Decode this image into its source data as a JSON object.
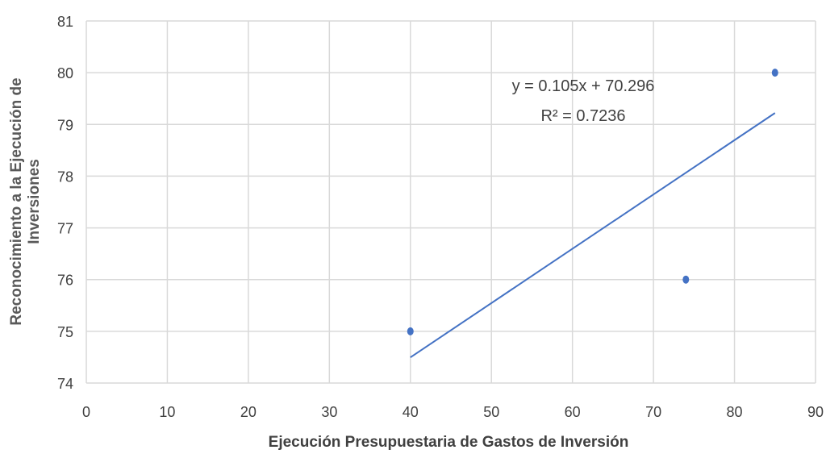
{
  "chart_data": {
    "type": "scatter",
    "title": "",
    "xlabel": "Ejecución Presupuestaria de Gastos de Inversión",
    "ylabel_lines": [
      "Reconocimiento a la Ejecución de",
      "Inversiones"
    ],
    "xlim": [
      0,
      90
    ],
    "ylim": [
      74,
      81
    ],
    "x_ticks": [
      0,
      10,
      20,
      30,
      40,
      50,
      60,
      70,
      80,
      90
    ],
    "y_ticks": [
      74,
      75,
      76,
      77,
      78,
      79,
      80,
      81
    ],
    "grid": true,
    "legend": "none",
    "series": [
      {
        "points": [
          {
            "x": 40,
            "y": 75
          },
          {
            "x": 74,
            "y": 76
          },
          {
            "x": 85,
            "y": 80
          }
        ],
        "color": "#4472C4"
      }
    ],
    "trendline": {
      "type": "linear",
      "slope": 0.105,
      "intercept": 70.296,
      "x_range": [
        40,
        85
      ],
      "color": "#4472C4",
      "equation_text": "y = 0.105x + 70.296",
      "r2_text": "R² = 0.7236"
    }
  }
}
